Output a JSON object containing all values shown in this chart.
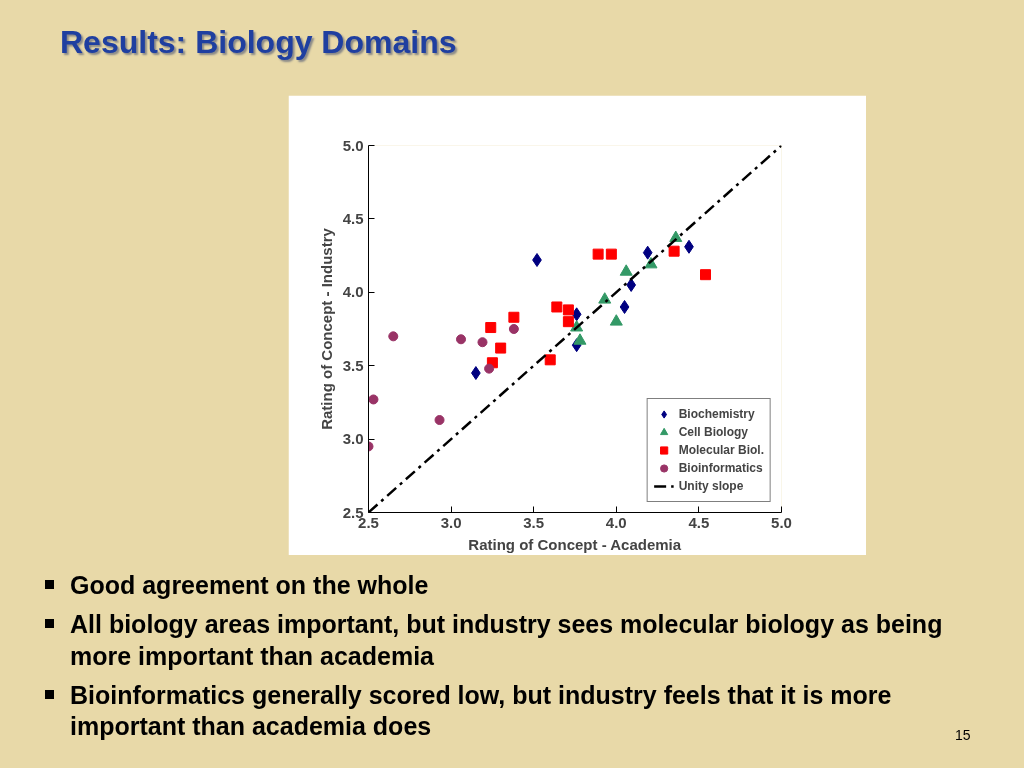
{
  "chart_data": {
    "type": "scatter",
    "title": "Results: Biology Domains",
    "xlabel": "Rating of Concept - Academia",
    "ylabel": "Rating of Concept - Industry",
    "xlim": [
      2.5,
      5.0
    ],
    "ylim": [
      2.5,
      5.0
    ],
    "xticks": [
      {
        "value": 2.5,
        "label": "2.5"
      },
      {
        "value": 3,
        "label": "3.0"
      },
      {
        "value": 3.5,
        "label": "3.5"
      },
      {
        "value": 4,
        "label": "4.0"
      },
      {
        "value": 4.5,
        "label": "4.5"
      },
      {
        "value": 5,
        "label": "5.0"
      }
    ],
    "yticks": [
      {
        "value": 2.5,
        "label": "2.5"
      },
      {
        "value": 3,
        "label": "3.0"
      },
      {
        "value": 3.5,
        "label": "3.5"
      },
      {
        "value": 4,
        "label": "4.0"
      },
      {
        "value": 4.5,
        "label": "4.5"
      },
      {
        "value": 5,
        "label": "5.0"
      }
    ],
    "grid": false,
    "legend": "bottom right",
    "series": [
      {
        "name": "Biochemistry",
        "marker": "diamond",
        "color": "#000080",
        "x": [
          3.52,
          3.15,
          3.76,
          3.76,
          4.19,
          4.09,
          4.05,
          4.44
        ],
        "values": [
          4.22,
          3.45,
          3.85,
          3.64,
          4.27,
          4.05,
          3.9,
          4.31
        ]
      },
      {
        "name": "Cell Biology",
        "marker": "triangle",
        "color": "#339966",
        "x": [
          4.36,
          4.21,
          4.06,
          3.93,
          4.0,
          3.76,
          3.78
        ],
        "values": [
          4.37,
          4.19,
          4.14,
          3.95,
          3.8,
          3.76,
          3.67
        ]
      },
      {
        "name": "Molecular Biol.",
        "marker": "square",
        "color": "#ff0000",
        "x": [
          3.89,
          3.97,
          4.35,
          4.54,
          3.64,
          3.71,
          3.71,
          3.6,
          3.38,
          3.24,
          3.3,
          3.25
        ],
        "values": [
          4.26,
          4.26,
          4.28,
          4.12,
          3.9,
          3.88,
          3.8,
          3.54,
          3.83,
          3.76,
          3.62,
          3.52
        ]
      },
      {
        "name": "Bioinformatics",
        "marker": "circle",
        "color": "#993366",
        "x": [
          2.65,
          3.06,
          3.19,
          3.38,
          3.23,
          2.53,
          2.93,
          2.5
        ],
        "values": [
          3.7,
          3.68,
          3.66,
          3.75,
          3.48,
          3.27,
          3.13,
          2.95
        ]
      },
      {
        "name": "Unity slope",
        "type": "line",
        "line_style": "dashed",
        "color": "#000000",
        "x": [
          2.5,
          5.0
        ],
        "values": [
          2.5,
          5.0
        ]
      }
    ],
    "annotations": [
      "Good agreement on the whole",
      "All biology areas important, but industry sees molecular biology as being more important than academia",
      "Bioinformatics generally scored low,  but industry feels that it is more important than academia does",
      "15"
    ]
  }
}
